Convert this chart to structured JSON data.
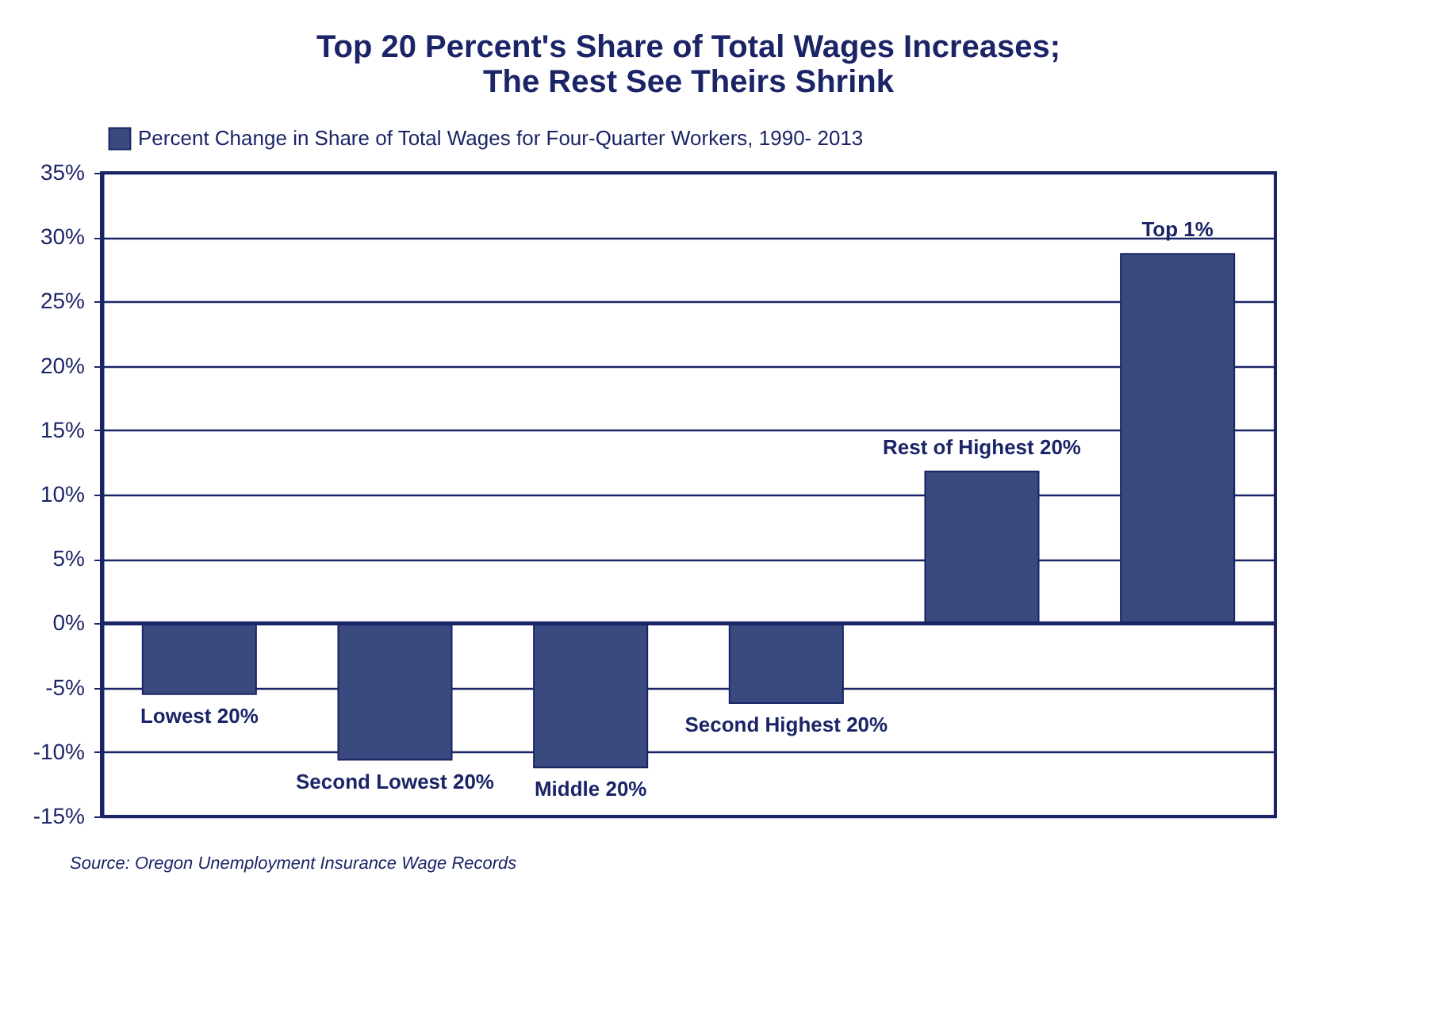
{
  "chart_data": {
    "type": "bar",
    "title": "Top 20 Percent's Share of Total Wages Increases;\nThe Rest See Theirs Shrink",
    "categories": [
      "Lowest 20%",
      "Second Lowest 20%",
      "Middle 20%",
      "Second Highest 20%",
      "Rest of Highest 20%",
      "Top 1%"
    ],
    "series": [
      {
        "name": "Percent Change in Share of Total Wages for Four-Quarter Workers, 1990- 2013",
        "color": "#3b4a7e",
        "values": [
          -5.5,
          -10.6,
          -11.2,
          -6.2,
          11.8,
          28.7
        ]
      }
    ],
    "ylim": [
      -15,
      35
    ],
    "yticks": [
      {
        "value": -15,
        "label": "-15%"
      },
      {
        "value": -10,
        "label": "-10%"
      },
      {
        "value": -5,
        "label": "-5%"
      },
      {
        "value": 0,
        "label": "0%"
      },
      {
        "value": 5,
        "label": "5%"
      },
      {
        "value": 10,
        "label": "10%"
      },
      {
        "value": 15,
        "label": "15%"
      },
      {
        "value": 20,
        "label": "20%"
      },
      {
        "value": 25,
        "label": "25%"
      },
      {
        "value": 30,
        "label": "30%"
      },
      {
        "value": 35,
        "label": "35%"
      }
    ],
    "ref_lines": [
      {
        "axis": "y",
        "value": 0,
        "color": "#1a2466"
      }
    ],
    "grid": "y",
    "legend": "top left",
    "tick_labels": "y",
    "annotations": [
      "Source: Oregon Unemployment Insurance Wage Records"
    ]
  }
}
